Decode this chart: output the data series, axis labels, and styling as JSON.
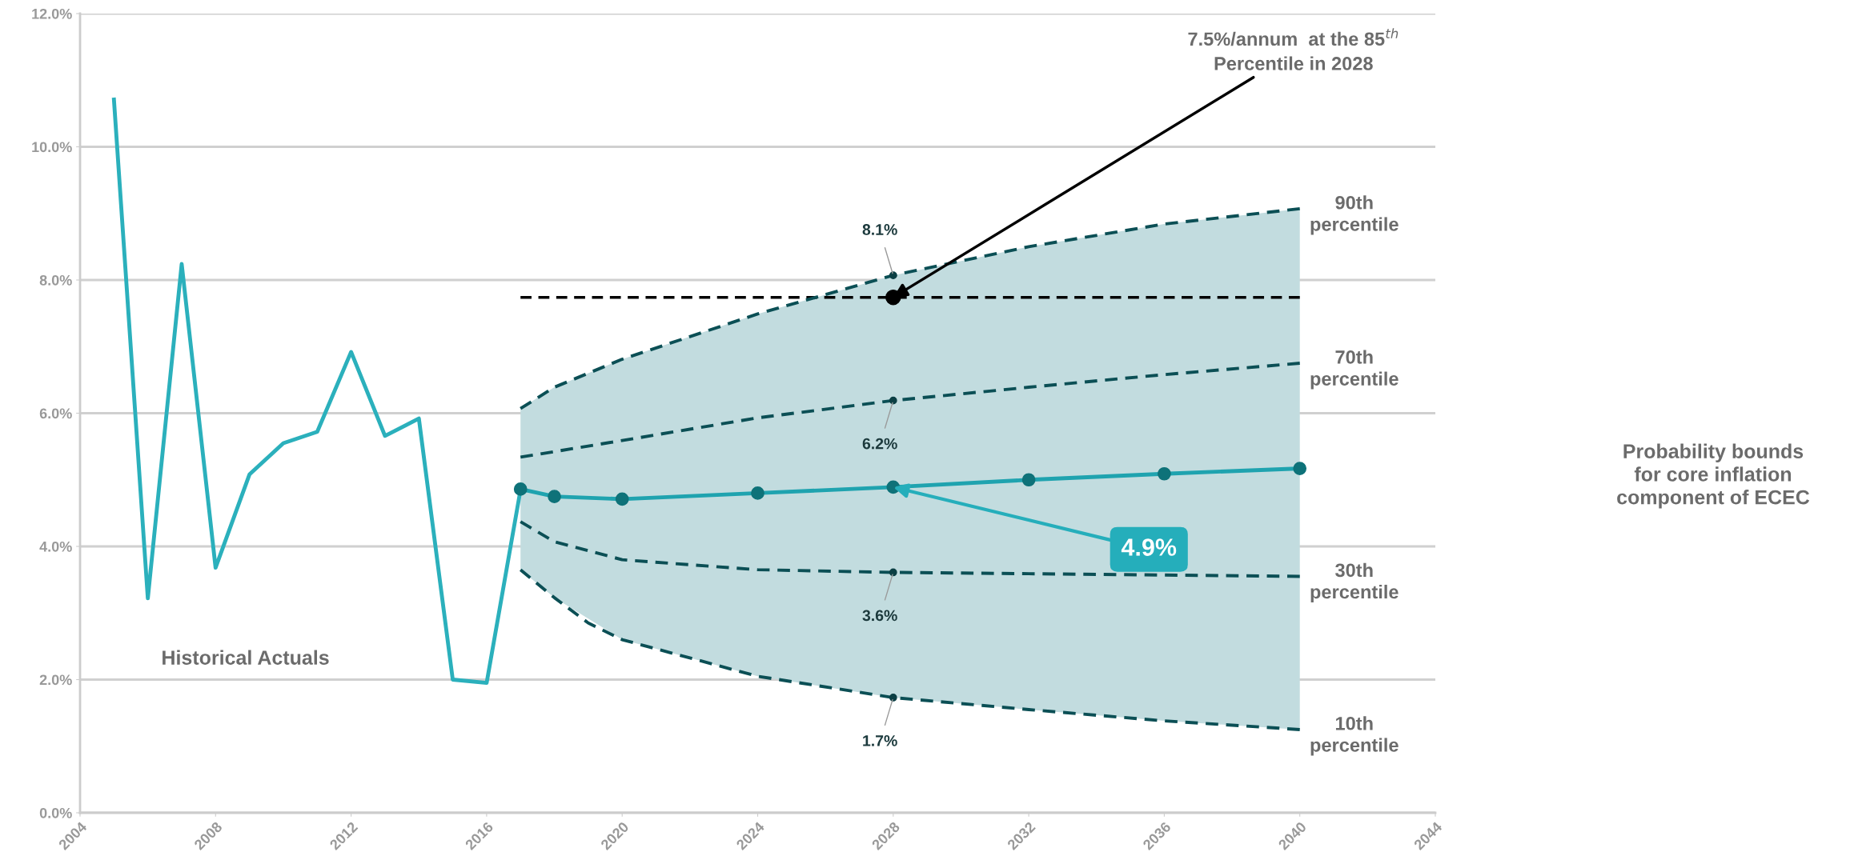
{
  "chart_data": {
    "type": "line",
    "xlim": [
      2004,
      2044
    ],
    "xticks": [
      2004,
      2008,
      2012,
      2016,
      2020,
      2024,
      2028,
      2032,
      2036,
      2040,
      2044
    ],
    "ylim": [
      0,
      12
    ],
    "yticks": [
      {
        "value": 0,
        "label": "0.0%"
      },
      {
        "value": 2,
        "label": "2.0%"
      },
      {
        "value": 4,
        "label": "4.0%"
      },
      {
        "value": 6,
        "label": "6.0%"
      },
      {
        "value": 8,
        "label": "8.0%"
      },
      {
        "value": 10,
        "label": "10.0%"
      },
      {
        "value": 12,
        "label": "12.0%"
      }
    ],
    "grid": "y",
    "series": [
      {
        "color": "#2bb0bc",
        "x": [
          2005,
          2006,
          2007,
          2008,
          2009,
          2010,
          2011,
          2012,
          2013,
          2014,
          2015,
          2016,
          2017
        ],
        "values": [
          10.71,
          3.22,
          8.24,
          3.68,
          5.08,
          5.55,
          5.72,
          6.92,
          5.66,
          5.92,
          2.0,
          1.95,
          4.85
        ]
      },
      {
        "name": "90th percentile",
        "color": "#0b4f55",
        "line_style": "dashed",
        "x": [
          2017,
          2018,
          2020,
          2024,
          2028,
          2032,
          2036,
          2040
        ],
        "values": [
          6.07,
          6.39,
          6.81,
          7.49,
          8.07,
          8.5,
          8.84,
          9.07
        ],
        "value_labels": [
          null,
          null,
          null,
          null,
          "8.1%",
          null,
          null,
          null
        ]
      },
      {
        "name": "70th percentile",
        "color": "#0b4f55",
        "line_style": "dashed",
        "x": [
          2017,
          2020,
          2024,
          2028,
          2032,
          2036,
          2040
        ],
        "values": [
          5.34,
          5.59,
          5.93,
          6.19,
          6.39,
          6.58,
          6.75
        ],
        "value_labels": [
          null,
          null,
          null,
          "6.2%",
          null,
          null,
          null
        ]
      },
      {
        "color": "#1fa3af",
        "marker": "circle",
        "x": [
          2017,
          2018,
          2020,
          2024,
          2028,
          2032,
          2036,
          2040
        ],
        "values": [
          4.86,
          4.75,
          4.71,
          4.8,
          4.89,
          5.0,
          5.09,
          5.17
        ],
        "value_labels": [
          null,
          null,
          null,
          null,
          "4.9%",
          null,
          null,
          null
        ],
        "upper": [
          6.07,
          6.39,
          6.81,
          7.49,
          8.07,
          8.5,
          8.84,
          9.07
        ],
        "lower": [
          3.65,
          3.23,
          2.6,
          2.05,
          1.73,
          1.55,
          1.38,
          1.25
        ]
      },
      {
        "name": "30th percentile",
        "color": "#0b4f55",
        "line_style": "dashed",
        "x": [
          2017,
          2018,
          2020,
          2024,
          2028,
          2032,
          2036,
          2040
        ],
        "values": [
          4.37,
          4.07,
          3.8,
          3.65,
          3.61,
          3.59,
          3.57,
          3.55
        ],
        "value_labels": [
          null,
          null,
          null,
          null,
          "3.6%",
          null,
          null,
          null
        ]
      },
      {
        "name": "10th percentile",
        "color": "#0b4f55",
        "line_style": "dashed",
        "x": [
          2017,
          2018,
          2019,
          2020,
          2024,
          2028,
          2032,
          2036,
          2040
        ],
        "values": [
          3.65,
          3.23,
          2.85,
          2.6,
          2.05,
          1.73,
          1.55,
          1.38,
          1.25
        ],
        "value_labels": [
          null,
          null,
          null,
          null,
          null,
          "1.7%",
          null,
          null,
          null
        ]
      },
      {
        "type": "scatter",
        "color": "#000000",
        "marker": "circle",
        "x": [
          2028
        ],
        "values": [
          7.74
        ]
      }
    ],
    "ref_lines": [
      {
        "axis": "y",
        "value": 7.74,
        "color": "#000000",
        "line_style": "dashed"
      }
    ],
    "annotations": [
      "Historical Actuals",
      "7.5%/annum  at the 85$^{th}$\nPercentile in 2028",
      "Probability bounds\nfor core inflation\ncomponent of ECEC"
    ]
  }
}
